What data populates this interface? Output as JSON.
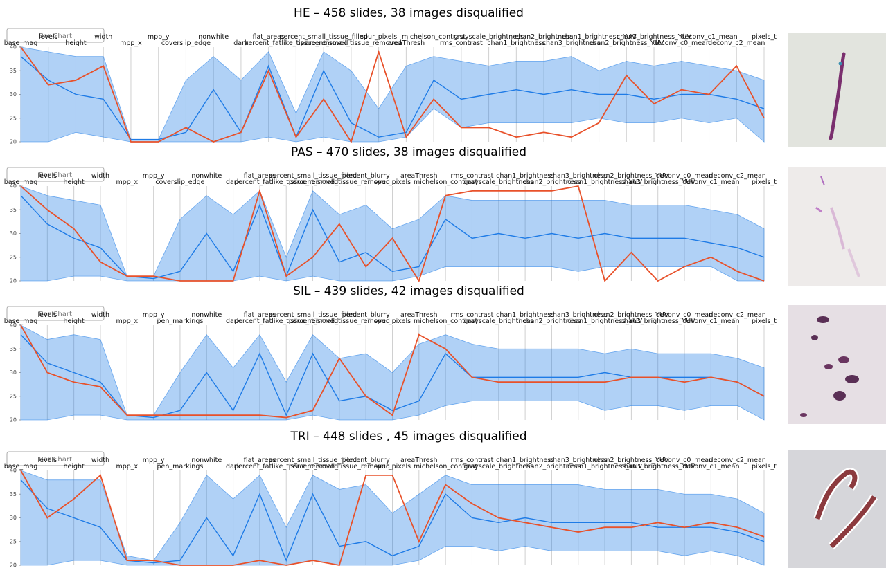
{
  "chart_data": [
    {
      "type": "parallel",
      "title": "HE – 458 slides, 38 images disqualified",
      "button": "Bar Chart",
      "axes": [
        "base_mag",
        "levels",
        "height",
        "width",
        "mpp_x",
        "mpp_y",
        "coverslip_edge",
        "nonwhite",
        "dark",
        "flat_areas",
        "percent_fatlike_tissue_removed",
        "percent_small_tissue_filled",
        "percent_small_tissue_removed",
        "spur_pixels",
        "areaThresh",
        "michelson_contrast",
        "rms_contrast",
        "grayscale_brightness",
        "chan1_brightness",
        "chan2_brightness",
        "chan3_brightness",
        "chan1_brightness_YUV",
        "chan2_brightness_YUV",
        "chan3_brightness_YUV",
        "deconv_c0_mean",
        "deconv_c1_mean",
        "deconv_c2_mean",
        "pixels_t"
      ],
      "ylim": [
        20,
        40
      ],
      "yticks": [
        20,
        25,
        30,
        35,
        40
      ],
      "band": {
        "color": "#1e7be6",
        "low": [
          20,
          20,
          22,
          21,
          20,
          20,
          20,
          20,
          20,
          21,
          20,
          21,
          20,
          20,
          21,
          27,
          23,
          24,
          24,
          24,
          24,
          25,
          24,
          24,
          25,
          24,
          25,
          20
        ],
        "high": [
          40,
          39,
          38,
          38,
          20.5,
          20.5,
          33,
          38,
          33,
          39,
          26,
          39,
          35,
          27,
          36,
          38,
          37,
          36,
          37,
          37,
          38,
          35,
          37,
          36,
          37,
          36,
          35,
          33
        ]
      },
      "series": [
        {
          "color": "#1e7be6",
          "values": [
            38,
            33,
            30,
            29,
            20.5,
            20.5,
            22,
            31,
            22,
            36,
            21,
            35,
            24,
            21,
            22,
            33,
            29,
            30,
            31,
            30,
            31,
            30,
            30,
            29,
            30,
            30,
            29,
            27
          ]
        },
        {
          "color": "#e8512a",
          "values": [
            40,
            32,
            33,
            36,
            20,
            20,
            23,
            20,
            22,
            35,
            21,
            29,
            20,
            39,
            21,
            29,
            23,
            23,
            21,
            22,
            21,
            24,
            34,
            28,
            31,
            30,
            36,
            25
          ]
        }
      ]
    },
    {
      "type": "parallel",
      "title": "PAS – 470 slides, 38 images disqualified",
      "button": "Bar Chart",
      "axes": [
        "base_mag",
        "levels",
        "height",
        "width",
        "mpp_x",
        "mpp_y",
        "coverslip_edge",
        "nonwhite",
        "dark",
        "flat_areas",
        "percent_fatlike_tissue_removed",
        "percent_small_tissue_filled",
        "percent_small_tissue_removed",
        "percent_blurry",
        "spur_pixels",
        "areaThresh",
        "michelson_contrast",
        "rms_contrast",
        "grayscale_brightness",
        "chan1_brightness",
        "chan2_brightness",
        "chan3_brightness",
        "chan1_brightness_YUV",
        "chan2_brightness_YUV",
        "chan3_brightness_YUV",
        "deconv_c0_mean",
        "deconv_c1_mean",
        "deconv_c2_mean",
        "pixels_t"
      ],
      "ylim": [
        20,
        40
      ],
      "yticks": [
        20,
        25,
        30,
        35,
        40
      ],
      "band": {
        "color": "#1e7be6",
        "low": [
          20,
          20,
          21,
          21,
          20,
          20,
          20,
          20,
          20,
          21,
          20,
          21,
          20,
          20,
          20,
          21,
          23,
          23,
          23,
          23,
          23,
          22,
          23,
          23,
          23,
          23,
          23,
          20,
          20
        ],
        "high": [
          40,
          38,
          37,
          36,
          21,
          21,
          33,
          38,
          34,
          39,
          25,
          39,
          34,
          36,
          31,
          33,
          38,
          37,
          37,
          37,
          37,
          37,
          37,
          36,
          36,
          36,
          35,
          34,
          31
        ]
      },
      "series": [
        {
          "color": "#1e7be6",
          "values": [
            38,
            32,
            29,
            27,
            21,
            20.5,
            22,
            30,
            22,
            36,
            21,
            35,
            24,
            26,
            22,
            23,
            33,
            29,
            30,
            29,
            30,
            29,
            30,
            29,
            29,
            29,
            28,
            27,
            25
          ]
        },
        {
          "color": "#e8512a",
          "values": [
            40,
            35,
            31,
            24,
            21,
            21,
            20,
            20,
            20,
            39,
            21,
            25,
            32,
            23,
            29,
            20,
            38,
            39,
            39,
            39,
            39,
            40,
            20,
            26,
            20,
            23,
            25,
            22,
            20
          ]
        }
      ]
    },
    {
      "type": "parallel",
      "title": "SIL – 439 slides, 42 images disqualified",
      "button": "Bar Chart",
      "axes": [
        "base_mag",
        "levels",
        "height",
        "width",
        "mpp_x",
        "mpp_y",
        "pen_markings",
        "nonwhite",
        "dark",
        "flat_areas",
        "percent_fatlike_tissue_removed",
        "percent_small_tissue_filled",
        "percent_small_tissue_removed",
        "percent_blurry",
        "spur_pixels",
        "areaThresh",
        "michelson_contrast",
        "rms_contrast",
        "grayscale_brightness",
        "chan1_brightness",
        "chan2_brightness",
        "chan3_brightness",
        "chan1_brightness_YUV",
        "chan2_brightness_YUV",
        "chan3_brightness_YUV",
        "deconv_c0_mean",
        "deconv_c1_mean",
        "deconv_c2_mean",
        "pixels_t"
      ],
      "ylim": [
        20,
        40
      ],
      "yticks": [
        20,
        25,
        30,
        35,
        40
      ],
      "band": {
        "color": "#1e7be6",
        "low": [
          20,
          20,
          21,
          21,
          20,
          20,
          20,
          20,
          20,
          20,
          20,
          21,
          20,
          20,
          20,
          21,
          23,
          24,
          24,
          24,
          24,
          24,
          22,
          23,
          23,
          22,
          23,
          23,
          20
        ],
        "high": [
          40,
          37,
          38,
          37,
          21,
          21,
          30,
          38,
          31,
          38,
          28,
          38,
          33,
          34,
          30,
          36,
          38,
          36,
          35,
          35,
          35,
          35,
          34,
          35,
          34,
          34,
          34,
          33,
          31
        ]
      },
      "series": [
        {
          "color": "#1e7be6",
          "values": [
            38,
            32,
            30,
            28,
            21,
            20.5,
            22,
            30,
            22,
            34,
            21,
            34,
            24,
            25,
            22,
            24,
            34,
            29,
            29,
            29,
            29,
            29,
            30,
            29,
            29,
            29,
            29,
            28,
            25
          ]
        },
        {
          "color": "#e8512a",
          "values": [
            40,
            30,
            28,
            27,
            21,
            21,
            21,
            21,
            21,
            21,
            20.5,
            22,
            33,
            25,
            21,
            38,
            35,
            29,
            28,
            28,
            28,
            28,
            28,
            29,
            29,
            28,
            29,
            28,
            25
          ]
        }
      ]
    },
    {
      "type": "parallel",
      "title": "TRI – 448 slides , 45 images disqualified",
      "button": "Bar Chart",
      "axes": [
        "base_mag",
        "levels",
        "height",
        "width",
        "mpp_x",
        "mpp_y",
        "pen_markings",
        "nonwhite",
        "dark",
        "flat_areas",
        "percent_fatlike_tissue_removed",
        "percent_small_tissue_filled",
        "percent_small_tissue_removed",
        "percent_blurry",
        "spur_pixels",
        "areaThresh",
        "michelson_contrast",
        "rms_contrast",
        "grayscale_brightness",
        "chan1_brightness",
        "chan2_brightness",
        "chan3_brightness",
        "chan1_brightness_YUV",
        "chan2_brightness_YUV",
        "chan3_brightness_YUV",
        "deconv_c0_mean",
        "deconv_c1_mean",
        "deconv_c2_mean",
        "pixels_t"
      ],
      "ylim": [
        20,
        40
      ],
      "yticks": [
        20,
        25,
        30,
        35,
        40
      ],
      "band": {
        "color": "#1e7be6",
        "low": [
          20,
          20,
          21,
          21,
          20,
          20,
          20,
          20,
          20,
          20,
          20,
          21,
          20,
          20,
          20,
          21,
          24,
          24,
          23,
          24,
          23,
          23,
          23,
          23,
          23,
          22,
          23,
          22,
          20
        ],
        "high": [
          40,
          38,
          38,
          38,
          22,
          21,
          29,
          39,
          34,
          39,
          28,
          39,
          36,
          37,
          31,
          35,
          39,
          37,
          37,
          37,
          37,
          37,
          36,
          36,
          36,
          35,
          35,
          34,
          31
        ]
      },
      "series": [
        {
          "color": "#1e7be6",
          "values": [
            38,
            32,
            30,
            28,
            21,
            20.5,
            21,
            30,
            22,
            35,
            21,
            35,
            24,
            25,
            22,
            24,
            35,
            30,
            29,
            30,
            29,
            29,
            29,
            29,
            28,
            28,
            28,
            27,
            25
          ]
        },
        {
          "color": "#e8512a",
          "values": [
            40,
            30,
            34,
            39,
            21,
            21,
            20,
            20,
            20,
            21,
            20,
            21,
            20,
            39,
            39,
            25,
            37,
            33,
            30,
            29,
            28,
            27,
            28,
            28,
            29,
            28,
            29,
            28,
            26
          ]
        }
      ]
    }
  ]
}
